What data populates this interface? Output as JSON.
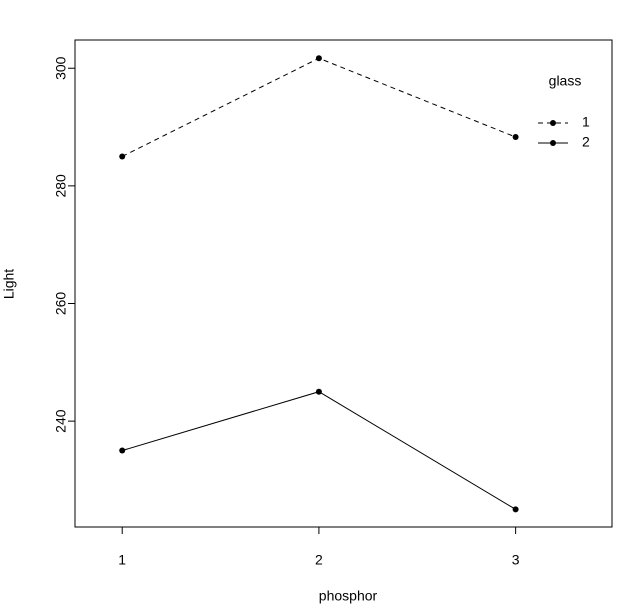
{
  "chart_data": {
    "type": "line",
    "xlabel": "phosphor",
    "ylabel": "Light",
    "x": [
      1,
      2,
      3
    ],
    "series": [
      {
        "name": "1",
        "color": "#000000",
        "linestyle": "dashed",
        "values": [
          285,
          301.7,
          288.3
        ]
      },
      {
        "name": "2",
        "color": "#000000",
        "linestyle": "solid",
        "values": [
          235,
          245,
          225
        ]
      }
    ],
    "legend_title": "glass",
    "legend": "top-right",
    "xlim": [
      0.76,
      3.49
    ],
    "xticks": [
      1,
      2,
      3
    ],
    "ylim": [
      222,
      304.8
    ],
    "yticks": [
      240,
      260,
      280,
      300
    ],
    "grid": false
  }
}
